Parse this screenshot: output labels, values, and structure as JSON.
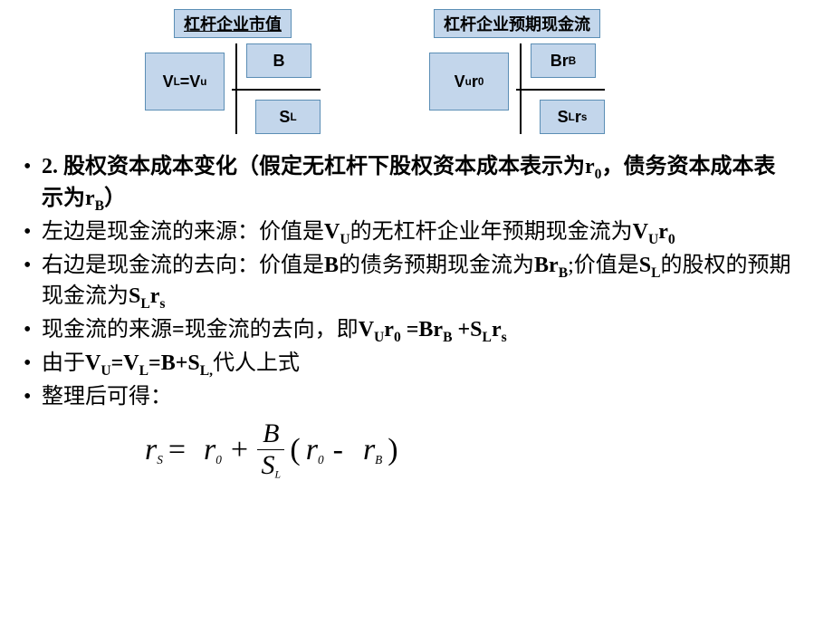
{
  "diagrams": {
    "left": {
      "title": "杠杆企业市值",
      "center": "V<sub>L</sub>=V<sub>u</sub>",
      "top": "B",
      "bottom": "S<sub>L</sub>"
    },
    "right": {
      "title": "杠杆企业预期现金流",
      "center": "V<sub>u</sub>r<sub>0</sub>",
      "top": "Br<sub>B</sub>",
      "bottom": "S<sub>L</sub>r<sub>s</sub>"
    }
  },
  "bullets": [
    "<b>2. 股权资本成本变化（假定无杠杆下股权资本成本表示为r<sub>0</sub>，债务资本成本表示为r<sub>B</sub>）</b>",
    "左边是现金流的来源：价值是<b>V<sub>U</sub></b>的无杠杆企业年预期现金流为<b>V<sub>U</sub>r<sub>0</sub></b>",
    "右边是现金流的去向：价值是<b>B</b>的债务预期现金流为<b>Br<sub>B</sub></b>;价值是<b>S<sub>L</sub></b>的股权的预期现金流为<b>S<sub>L</sub>r<sub>s</sub></b>",
    "现金流的来源<b>=</b>现金流的去向，即<b>V<sub>U</sub>r<sub>0</sub> =Br<sub>B</sub> +S<sub>L</sub>r<sub>s</sub></b>",
    "由于<b>V<sub>U</sub>=V<sub>L</sub>=B+S<sub>L,</sub></b>代人上式",
    "整理后可得："
  ],
  "equation": {
    "lhs": "r<span class=\"sub-it\"><sub>S</sub></span>",
    "r0a": "r<span class=\"sub-it\"><sub>0</sub></span>",
    "frac_num": "B",
    "frac_den": "S<span class=\"sub-it\"><sub>L</sub></span>",
    "r0b": "r<span class=\"sub-it\"><sub>0</sub></span>",
    "rB": "r<span class=\"sub-it\"><sub>B</sub></span>"
  },
  "colors": {
    "box_bg": "#c3d6eb",
    "box_border": "#5b8eb5",
    "bg": "#ffffff",
    "text": "#000000"
  }
}
